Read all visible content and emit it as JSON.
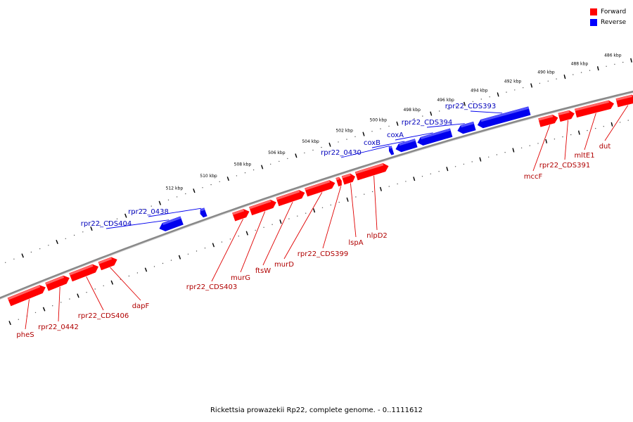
{
  "legend": {
    "forward_label": "Forward",
    "reverse_label": "Reverse",
    "forward_color": "#ff0000",
    "reverse_color": "#0000ff"
  },
  "caption": "Rickettsia prowazekii Rp22, complete genome. - 0..1111612",
  "colors": {
    "forward_fill": "#ff0000",
    "forward_light": "#ff7777",
    "forward_label": "#b00000",
    "reverse_fill": "#0000ee",
    "reverse_light": "#6060ff",
    "reverse_label": "#0000bb",
    "backbone": "#888888"
  },
  "axis": {
    "unit": "kbp",
    "ticks": [
      486,
      488,
      490,
      492,
      494,
      496,
      498,
      500,
      502,
      504,
      506,
      508,
      510,
      512
    ]
  },
  "genes": [
    {
      "name": "dut",
      "strand": "forward",
      "start": 485.2,
      "end": 486.4
    },
    {
      "name": "mltE1",
      "strand": "forward",
      "start": 486.6,
      "end": 488.9
    },
    {
      "name": "rpr22_CDS391",
      "strand": "forward",
      "start": 489.0,
      "end": 489.9
    },
    {
      "name": "mccF",
      "strand": "forward",
      "start": 490.0,
      "end": 491.1
    },
    {
      "name": "rpr22_CDS393",
      "strand": "reverse",
      "start": 491.5,
      "end": 494.6
    },
    {
      "name": "rpr22_CDS394",
      "strand": "reverse",
      "start": 494.8,
      "end": 495.8
    },
    {
      "name": "coxA",
      "strand": "reverse",
      "start": 496.2,
      "end": 498.2
    },
    {
      "name": "coxB",
      "strand": "reverse",
      "start": 498.3,
      "end": 499.5
    },
    {
      "name": "rpr22_0430",
      "strand": "reverse",
      "start": 499.7,
      "end": 499.9
    },
    {
      "name": "nlpD2",
      "strand": "forward",
      "start": 500.2,
      "end": 502.1
    },
    {
      "name": "lspA",
      "strand": "forward",
      "start": 502.2,
      "end": 502.9
    },
    {
      "name": "rpr22_CDS399",
      "strand": "forward",
      "start": 503.0,
      "end": 503.25
    },
    {
      "name": "murD",
      "strand": "forward",
      "start": 503.4,
      "end": 505.1
    },
    {
      "name": "ftsW",
      "strand": "forward",
      "start": 505.2,
      "end": 506.8
    },
    {
      "name": "murG",
      "strand": "forward",
      "start": 506.9,
      "end": 508.4
    },
    {
      "name": "rpr22_CDS403",
      "strand": "forward",
      "start": 508.5,
      "end": 509.4
    },
    {
      "name": "rpr22_0438",
      "strand": "reverse",
      "start": 510.8,
      "end": 511.1
    },
    {
      "name": "rpr22_CDS404",
      "strand": "reverse",
      "start": 512.2,
      "end": 513.5
    },
    {
      "name": "dapF",
      "strand": "forward",
      "start": 516.3,
      "end": 517.3
    },
    {
      "name": "rpr22_CDS406",
      "strand": "forward",
      "start": 517.4,
      "end": 519.0
    },
    {
      "name": "rpr22_0442",
      "strand": "forward",
      "start": 519.1,
      "end": 520.4
    },
    {
      "name": "pheS",
      "strand": "forward",
      "start": 520.5,
      "end": 522.6
    }
  ]
}
